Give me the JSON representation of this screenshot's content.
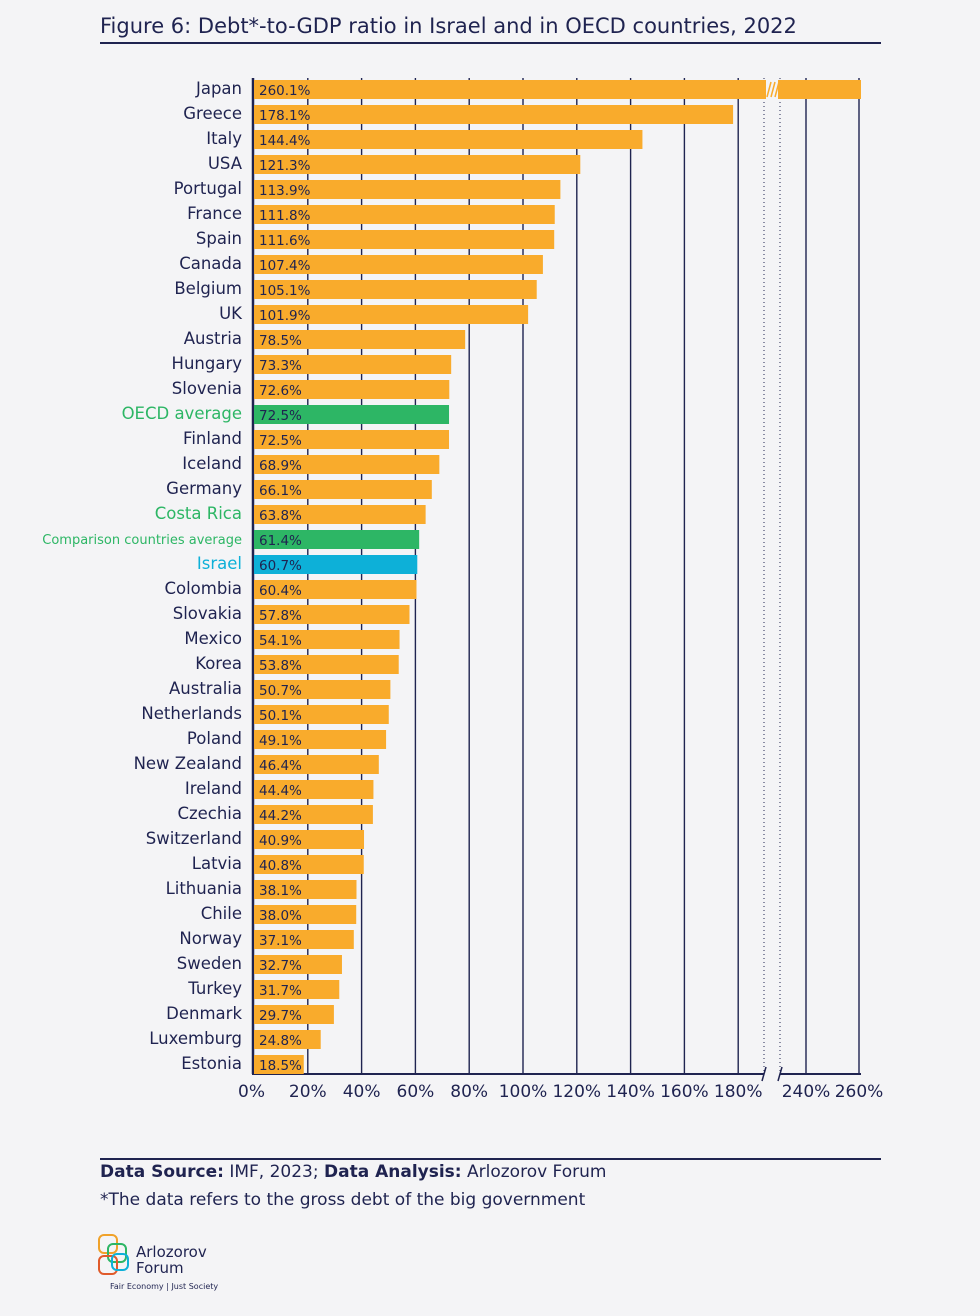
{
  "title": "Figure 6: Debt*-to-GDP ratio in Israel and in OECD countries, 2022",
  "colors": {
    "bar_default": "#f9ab2c",
    "bar_oecd": "#2db665",
    "bar_israel": "#0db0d8",
    "label_highlight_green": "#2db665",
    "label_highlight_blue": "#0db0d8",
    "text": "#1f2350",
    "grid": "#1f2350"
  },
  "chart_data": {
    "type": "bar",
    "orientation": "horizontal",
    "axis_break": "between 180% and 240%; Japan bar is broken",
    "xlim": [
      0,
      260
    ],
    "x_ticks": [
      "0%",
      "20%",
      "40%",
      "60%",
      "80%",
      "100%",
      "120%",
      "140%",
      "160%",
      "180%",
      "240%",
      "260%"
    ],
    "grid": true,
    "categories": [
      "Japan",
      "Greece",
      "Italy",
      "USA",
      "Portugal",
      "France",
      "Spain",
      "Canada",
      "Belgium",
      "UK",
      "Austria",
      "Hungary",
      "Slovenia",
      "OECD average",
      "Finland",
      "Iceland",
      "Germany",
      "Costa Rica",
      "Comparison countries average",
      "Israel",
      "Colombia",
      "Slovakia",
      "Mexico",
      "Korea",
      "Australia",
      "Netherlands",
      "Poland",
      "New Zealand",
      "Ireland",
      "Czechia",
      "Switzerland",
      "Latvia",
      "Lithuania",
      "Chile",
      "Norway",
      "Sweden",
      "Turkey",
      "Denmark",
      "Luxemburg",
      "Estonia"
    ],
    "values": [
      260.1,
      178.1,
      144.4,
      121.3,
      113.9,
      111.8,
      111.6,
      107.4,
      105.1,
      101.9,
      78.5,
      73.3,
      72.6,
      72.5,
      72.5,
      68.9,
      66.1,
      63.8,
      61.4,
      60.7,
      60.4,
      57.8,
      54.1,
      53.8,
      50.7,
      50.1,
      49.1,
      46.4,
      44.4,
      44.2,
      40.9,
      40.8,
      38.1,
      38.0,
      37.1,
      32.7,
      31.7,
      29.7,
      24.8,
      18.5
    ],
    "data_labels": [
      "260.1%",
      "178.1%",
      "144.4%",
      "121.3%",
      "113.9%",
      "111.8%",
      "111.6%",
      "107.4%",
      "105.1%",
      "101.9%",
      "78.5%",
      "73.3%",
      "72.6%",
      "72.5%",
      "72.5%",
      "68.9%",
      "66.1%",
      "63.8%",
      "61.4%",
      "60.7%",
      "60.4%",
      "57.8%",
      "54.1%",
      "53.8%",
      "50.7%",
      "50.1%",
      "49.1%",
      "46.4%",
      "44.4%",
      "44.2%",
      "40.9%",
      "40.8%",
      "38.1%",
      "38.0%",
      "37.1%",
      "32.7%",
      "31.7%",
      "29.7%",
      "24.8%",
      "18.5%"
    ],
    "highlight": {
      "OECD average": "green",
      "Costa Rica": "green-label",
      "Comparison countries average": "green",
      "Israel": "blue"
    }
  },
  "footer": {
    "source_label": "Data Source:",
    "source_text": " IMF, 2023; ",
    "analysis_label": "Data Analysis:",
    "analysis_text": " Arlozorov Forum",
    "footnote": "*The data refers to the gross debt of the big government"
  },
  "logo": {
    "name_line1": "Arlozorov",
    "name_line2": "Forum",
    "tagline": "Fair Economy | Just Society"
  }
}
